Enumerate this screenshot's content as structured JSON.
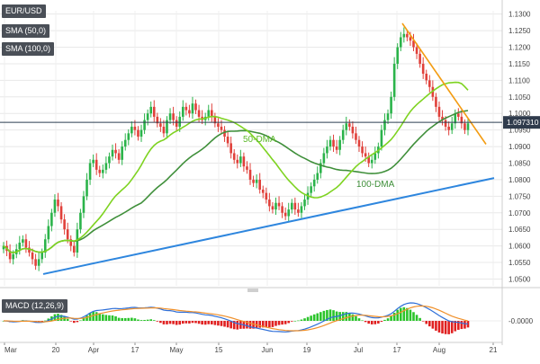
{
  "chart_data": {
    "type": "candlestick",
    "legend": {
      "symbol": "EUR/USD",
      "sma50": "SMA (50,0)",
      "sma100": "SMA (100,0)",
      "macd": "MACD (12,26,9)"
    },
    "price_label": "1.097310",
    "current_price": 1.0973,
    "annotations": {
      "dma50": "50-DMA",
      "dma100": "100-DMA"
    },
    "y_ticks": [
      "1.1300",
      "1.1250",
      "1.1200",
      "1.1150",
      "1.1100",
      "1.1050",
      "1.1000",
      "1.0950",
      "1.0900",
      "1.0850",
      "1.0800",
      "1.0750",
      "1.0700",
      "1.0650",
      "1.0600",
      "1.0550",
      "1.0500"
    ],
    "ylim": [
      1.0485,
      1.131
    ],
    "x_ticks": [
      "Mar",
      "20",
      "Apr",
      "17",
      "May",
      "15",
      "Jun",
      "19",
      "Jul",
      "17",
      "Aug",
      "21"
    ],
    "macd_tick": "-0.0000",
    "closes": [
      1.06,
      1.0585,
      1.056,
      1.0575,
      1.059,
      1.061,
      1.062,
      1.0595,
      1.058,
      1.056,
      1.054,
      1.056,
      1.058,
      1.062,
      1.066,
      1.07,
      1.074,
      1.072,
      1.068,
      1.065,
      1.062,
      1.06,
      1.058,
      1.065,
      1.07,
      1.075,
      1.08,
      1.085,
      1.086,
      1.083,
      1.082,
      1.083,
      1.085,
      1.087,
      1.089,
      1.088,
      1.086,
      1.09,
      1.092,
      1.094,
      1.096,
      1.095,
      1.093,
      1.095,
      1.098,
      1.1,
      1.102,
      1.099,
      1.097,
      1.096,
      1.094,
      1.098,
      1.1,
      1.098,
      1.096,
      1.099,
      1.102,
      1.101,
      1.1,
      1.103,
      1.101,
      1.099,
      1.098,
      1.099,
      1.101,
      1.099,
      1.097,
      1.096,
      1.095,
      1.093,
      1.091,
      1.088,
      1.086,
      1.085,
      1.087,
      1.084,
      1.083,
      1.08,
      1.079,
      1.08,
      1.077,
      1.076,
      1.074,
      1.072,
      1.071,
      1.073,
      1.072,
      1.07,
      1.069,
      1.071,
      1.073,
      1.071,
      1.07,
      1.072,
      1.074,
      1.076,
      1.078,
      1.08,
      1.082,
      1.085,
      1.088,
      1.09,
      1.092,
      1.09,
      1.089,
      1.092,
      1.095,
      1.097,
      1.096,
      1.094,
      1.092,
      1.09,
      1.088,
      1.087,
      1.085,
      1.086,
      1.088,
      1.09,
      1.095,
      1.098,
      1.1,
      1.105,
      1.115,
      1.12,
      1.123,
      1.124,
      1.123,
      1.122,
      1.12,
      1.118,
      1.115,
      1.112,
      1.11,
      1.108,
      1.105,
      1.102,
      1.099,
      1.098,
      1.096,
      1.095,
      1.097,
      1.1,
      1.099,
      1.097,
      1.095,
      1.097
    ]
  }
}
